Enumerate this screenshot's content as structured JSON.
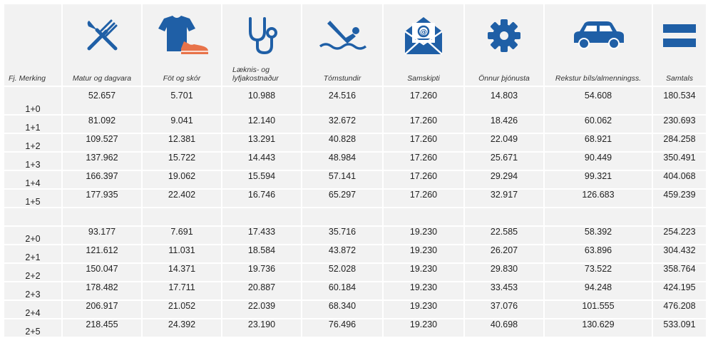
{
  "colors": {
    "icon_blue": "#1f5fa6",
    "shoe_orange": "#e8734a",
    "cell_bg": "#f2f2f2"
  },
  "header": {
    "row_label": "Fj. Merking",
    "columns": [
      {
        "label": "Matur og dagvara",
        "icon": "cutlery-icon"
      },
      {
        "label": "Föt og skór",
        "icon": "clothing-shoe-icon"
      },
      {
        "label": "Læknis- og lyfjakostnaður",
        "icon": "stethoscope-icon"
      },
      {
        "label": "Tómstundir",
        "icon": "swimmer-icon"
      },
      {
        "label": "Samskipti",
        "icon": "email-envelope-icon"
      },
      {
        "label": "Önnur þjónusta",
        "icon": "gear-icon"
      },
      {
        "label": "Rekstur bíls/almenningss.",
        "icon": "car-icon"
      },
      {
        "label": "Samtals",
        "icon": "equals-icon"
      }
    ]
  },
  "group1": [
    {
      "label": "1+0",
      "values": [
        "52.657",
        "5.701",
        "10.988",
        "24.516",
        "17.260",
        "14.803",
        "54.608",
        "180.534"
      ]
    },
    {
      "label": "1+1",
      "values": [
        "81.092",
        "9.041",
        "12.140",
        "32.672",
        "17.260",
        "18.426",
        "60.062",
        "230.693"
      ]
    },
    {
      "label": "1+2",
      "values": [
        "109.527",
        "12.381",
        "13.291",
        "40.828",
        "17.260",
        "22.049",
        "68.921",
        "284.258"
      ]
    },
    {
      "label": "1+3",
      "values": [
        "137.962",
        "15.722",
        "14.443",
        "48.984",
        "17.260",
        "25.671",
        "90.449",
        "350.491"
      ]
    },
    {
      "label": "1+4",
      "values": [
        "166.397",
        "19.062",
        "15.594",
        "57.141",
        "17.260",
        "29.294",
        "99.321",
        "404.068"
      ]
    },
    {
      "label": "1+5",
      "values": [
        "177.935",
        "22.402",
        "16.746",
        "65.297",
        "17.260",
        "32.917",
        "126.683",
        "459.239"
      ]
    }
  ],
  "group2": [
    {
      "label": "2+0",
      "values": [
        "93.177",
        "7.691",
        "17.433",
        "35.716",
        "19.230",
        "22.585",
        "58.392",
        "254.223"
      ]
    },
    {
      "label": "2+1",
      "values": [
        "121.612",
        "11.031",
        "18.584",
        "43.872",
        "19.230",
        "26.207",
        "63.896",
        "304.432"
      ]
    },
    {
      "label": "2+2",
      "values": [
        "150.047",
        "14.371",
        "19.736",
        "52.028",
        "19.230",
        "29.830",
        "73.522",
        "358.764"
      ]
    },
    {
      "label": "2+3",
      "values": [
        "178.482",
        "17.711",
        "20.887",
        "60.184",
        "19.230",
        "33.453",
        "94.248",
        "424.195"
      ]
    },
    {
      "label": "2+4",
      "values": [
        "206.917",
        "21.052",
        "22.039",
        "68.340",
        "19.230",
        "37.076",
        "101.555",
        "476.208"
      ]
    },
    {
      "label": "2+5",
      "values": [
        "218.455",
        "24.392",
        "23.190",
        "76.496",
        "19.230",
        "40.698",
        "130.629",
        "533.091"
      ]
    }
  ]
}
